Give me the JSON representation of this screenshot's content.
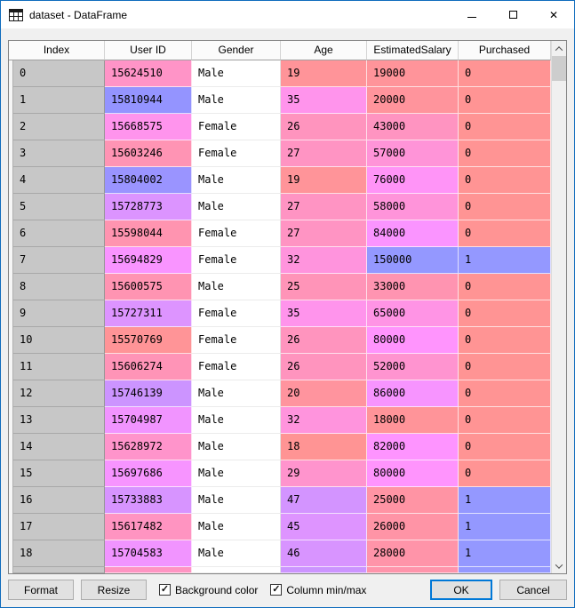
{
  "window": {
    "title": "dataset - DataFrame"
  },
  "table": {
    "columns": [
      "Index",
      "User ID",
      "Gender",
      "Age",
      "EstimatedSalary",
      "Purchased"
    ],
    "rows": [
      {
        "index": "0",
        "user_id": "15624510",
        "gender": "Male",
        "age": "19",
        "salary": "19000",
        "purchased": "0",
        "cell_colors": [
          "#FF94C7",
          "#FF9499",
          "#FF949A",
          "#FF9494"
        ]
      },
      {
        "index": "1",
        "user_id": "15810944",
        "gender": "Male",
        "age": "35",
        "salary": "20000",
        "purchased": "0",
        "cell_colors": [
          "#9494FF",
          "#FF94EC",
          "#FF949C",
          "#FF9494"
        ]
      },
      {
        "index": "2",
        "user_id": "15668575",
        "gender": "Female",
        "age": "26",
        "salary": "43000",
        "purchased": "0",
        "cell_colors": [
          "#FF94ED",
          "#FF94BE",
          "#FF94C1",
          "#FF9494"
        ]
      },
      {
        "index": "3",
        "user_id": "15603246",
        "gender": "Female",
        "age": "27",
        "salary": "57000",
        "purchased": "0",
        "cell_colors": [
          "#FF94B4",
          "#FF94C3",
          "#FF94D8",
          "#FF9494"
        ]
      },
      {
        "index": "4",
        "user_id": "15804002",
        "gender": "Male",
        "age": "19",
        "salary": "76000",
        "purchased": "0",
        "cell_colors": [
          "#9A94FF",
          "#FF9499",
          "#FF94F7",
          "#FF9494"
        ]
      },
      {
        "index": "5",
        "user_id": "15728773",
        "gender": "Male",
        "age": "27",
        "salary": "58000",
        "purchased": "0",
        "cell_colors": [
          "#DC94FF",
          "#FF94C3",
          "#FF94DA",
          "#FF9494"
        ]
      },
      {
        "index": "6",
        "user_id": "15598044",
        "gender": "Female",
        "age": "27",
        "salary": "84000",
        "purchased": "0",
        "cell_colors": [
          "#FF94B0",
          "#FF94C3",
          "#FA94FF",
          "#FF9494"
        ]
      },
      {
        "index": "7",
        "user_id": "15694829",
        "gender": "Female",
        "age": "32",
        "salary": "150000",
        "purchased": "1",
        "cell_colors": [
          "#F994FF",
          "#FF94DD",
          "#9498FF",
          "#9498FF"
        ]
      },
      {
        "index": "8",
        "user_id": "15600575",
        "gender": "Male",
        "age": "25",
        "salary": "33000",
        "purchased": "0",
        "cell_colors": [
          "#FF94B2",
          "#FF94B8",
          "#FF94B1",
          "#FF9494"
        ]
      },
      {
        "index": "9",
        "user_id": "15727311",
        "gender": "Female",
        "age": "35",
        "salary": "65000",
        "purchased": "0",
        "cell_colors": [
          "#DD94FF",
          "#FF94EC",
          "#FF94E5",
          "#FF9494"
        ]
      },
      {
        "index": "10",
        "user_id": "15570769",
        "gender": "Female",
        "age": "26",
        "salary": "80000",
        "purchased": "0",
        "cell_colors": [
          "#FF9497",
          "#FF94BE",
          "#FF94FD",
          "#FF9494"
        ]
      },
      {
        "index": "11",
        "user_id": "15606274",
        "gender": "Female",
        "age": "26",
        "salary": "52000",
        "purchased": "0",
        "cell_colors": [
          "#FF94B7",
          "#FF94BE",
          "#FF94D0",
          "#FF9494"
        ]
      },
      {
        "index": "12",
        "user_id": "15746139",
        "gender": "Male",
        "age": "20",
        "salary": "86000",
        "purchased": "0",
        "cell_colors": [
          "#CC94FF",
          "#FF949E",
          "#F794FF",
          "#FF9494"
        ]
      },
      {
        "index": "13",
        "user_id": "15704987",
        "gender": "Male",
        "age": "32",
        "salary": "18000",
        "purchased": "0",
        "cell_colors": [
          "#F194FF",
          "#FF94DD",
          "#FF9499",
          "#FF9494"
        ]
      },
      {
        "index": "14",
        "user_id": "15628972",
        "gender": "Male",
        "age": "18",
        "salary": "82000",
        "purchased": "0",
        "cell_colors": [
          "#FF94CB",
          "#FF9494",
          "#FE94FF",
          "#FF9494"
        ]
      },
      {
        "index": "15",
        "user_id": "15697686",
        "gender": "Male",
        "age": "29",
        "salary": "80000",
        "purchased": "0",
        "cell_colors": [
          "#F794FF",
          "#FF94CD",
          "#FF94FD",
          "#FF9494"
        ]
      },
      {
        "index": "16",
        "user_id": "15733883",
        "gender": "Male",
        "age": "47",
        "salary": "25000",
        "purchased": "1",
        "cell_colors": [
          "#D794FF",
          "#D394FF",
          "#FF94A4",
          "#9498FF"
        ]
      },
      {
        "index": "17",
        "user_id": "15617482",
        "gender": "Male",
        "age": "45",
        "salary": "26000",
        "purchased": "1",
        "cell_colors": [
          "#FF94C1",
          "#DE94FF",
          "#FF94A6",
          "#9498FF"
        ]
      },
      {
        "index": "18",
        "user_id": "15704583",
        "gender": "Male",
        "age": "46",
        "salary": "28000",
        "purchased": "1",
        "cell_colors": [
          "#F194FF",
          "#D894FF",
          "#FF94A9",
          "#9498FF"
        ]
      }
    ],
    "partial_row_colors": [
      "#FF94C2",
      "#CC94FF",
      "#FF94AB",
      "#9498FF"
    ]
  },
  "footer": {
    "format_label": "Format",
    "resize_label": "Resize",
    "bg_color_label": "Background color",
    "bg_color_checked": "✓",
    "minmax_label": "Column min/max",
    "minmax_checked": "✓",
    "ok_label": "OK",
    "cancel_label": "Cancel"
  },
  "colors": {
    "accent": "#0078D7",
    "index_cell_bg": "#C7C7C7",
    "header_bg": "#FBFBFB",
    "scrollbar_thumb": "#CDCDCD"
  }
}
